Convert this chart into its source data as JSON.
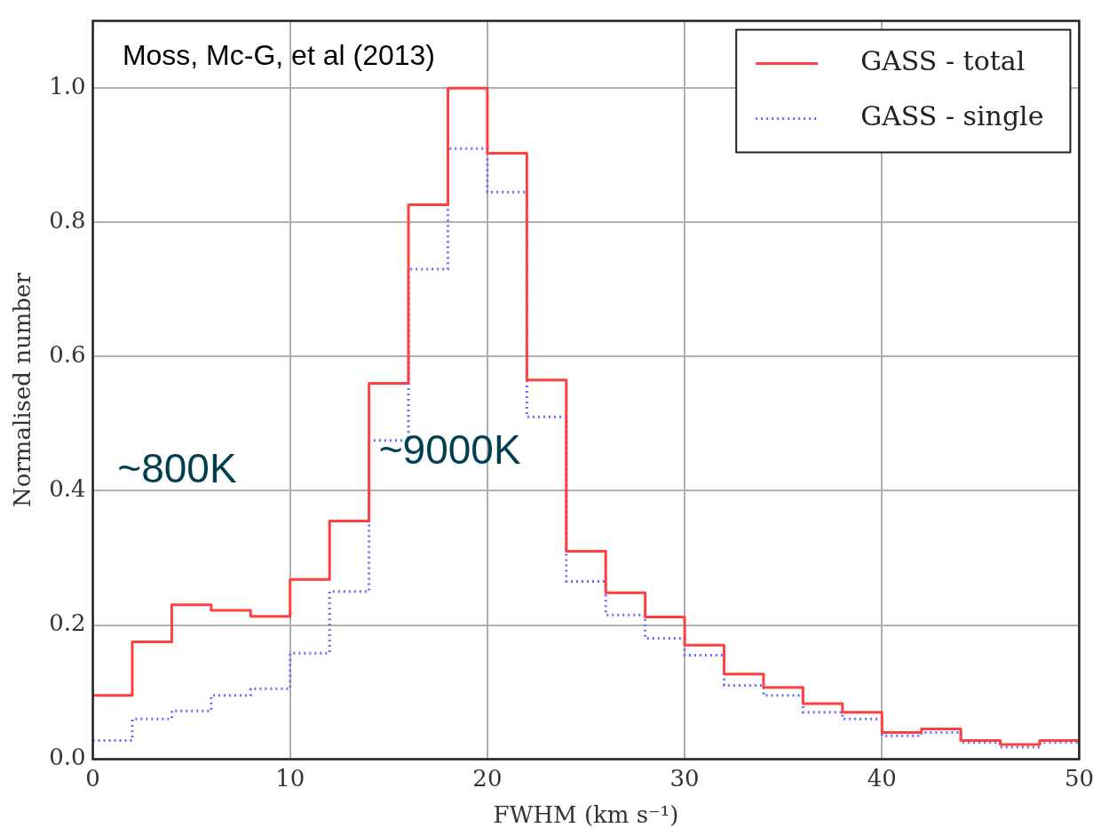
{
  "chart_data": {
    "type": "histogram",
    "xlabel": "FWHM (km s⁻¹)",
    "ylabel": "Normalised number",
    "bins": [
      0,
      2,
      4,
      6,
      8,
      10,
      12,
      14,
      16,
      18,
      20,
      22,
      24,
      26,
      28,
      30,
      32,
      34,
      36,
      38,
      40,
      42,
      44,
      46,
      48,
      50
    ],
    "series": [
      {
        "name": "GASS - total",
        "color": "#ff4040",
        "line_style": "solid",
        "values": [
          0.095,
          0.175,
          0.23,
          0.222,
          0.213,
          0.268,
          0.355,
          0.56,
          0.826,
          1.0,
          0.903,
          0.565,
          0.31,
          0.248,
          0.212,
          0.17,
          0.127,
          0.107,
          0.083,
          0.07,
          0.04,
          0.045,
          0.028,
          0.022,
          0.028
        ]
      },
      {
        "name": "GASS - single",
        "color": "#6b6bff",
        "line_style": "dotted",
        "values": [
          0.028,
          0.06,
          0.072,
          0.095,
          0.105,
          0.158,
          0.25,
          0.475,
          0.73,
          0.91,
          0.845,
          0.51,
          0.265,
          0.215,
          0.18,
          0.155,
          0.11,
          0.095,
          0.07,
          0.06,
          0.035,
          0.04,
          0.025,
          0.018,
          0.025
        ]
      }
    ],
    "xlim": [
      0,
      50
    ],
    "xticks": [
      0,
      10,
      20,
      30,
      40,
      50
    ],
    "ylim": [
      0,
      1.1
    ],
    "yticks": [
      {
        "value": 0,
        "label": "0.0"
      },
      {
        "value": 0.2,
        "label": "0.2"
      },
      {
        "value": 0.4,
        "label": "0.4"
      },
      {
        "value": 0.6,
        "label": "0.6"
      },
      {
        "value": 0.8,
        "label": "0.8"
      },
      {
        "value": 1.0,
        "label": "1.0"
      }
    ],
    "grid": true,
    "legend": "top right",
    "annotations": [
      "Moss, Mc-G, et al (2013)",
      "~800K",
      "~9000K"
    ]
  }
}
